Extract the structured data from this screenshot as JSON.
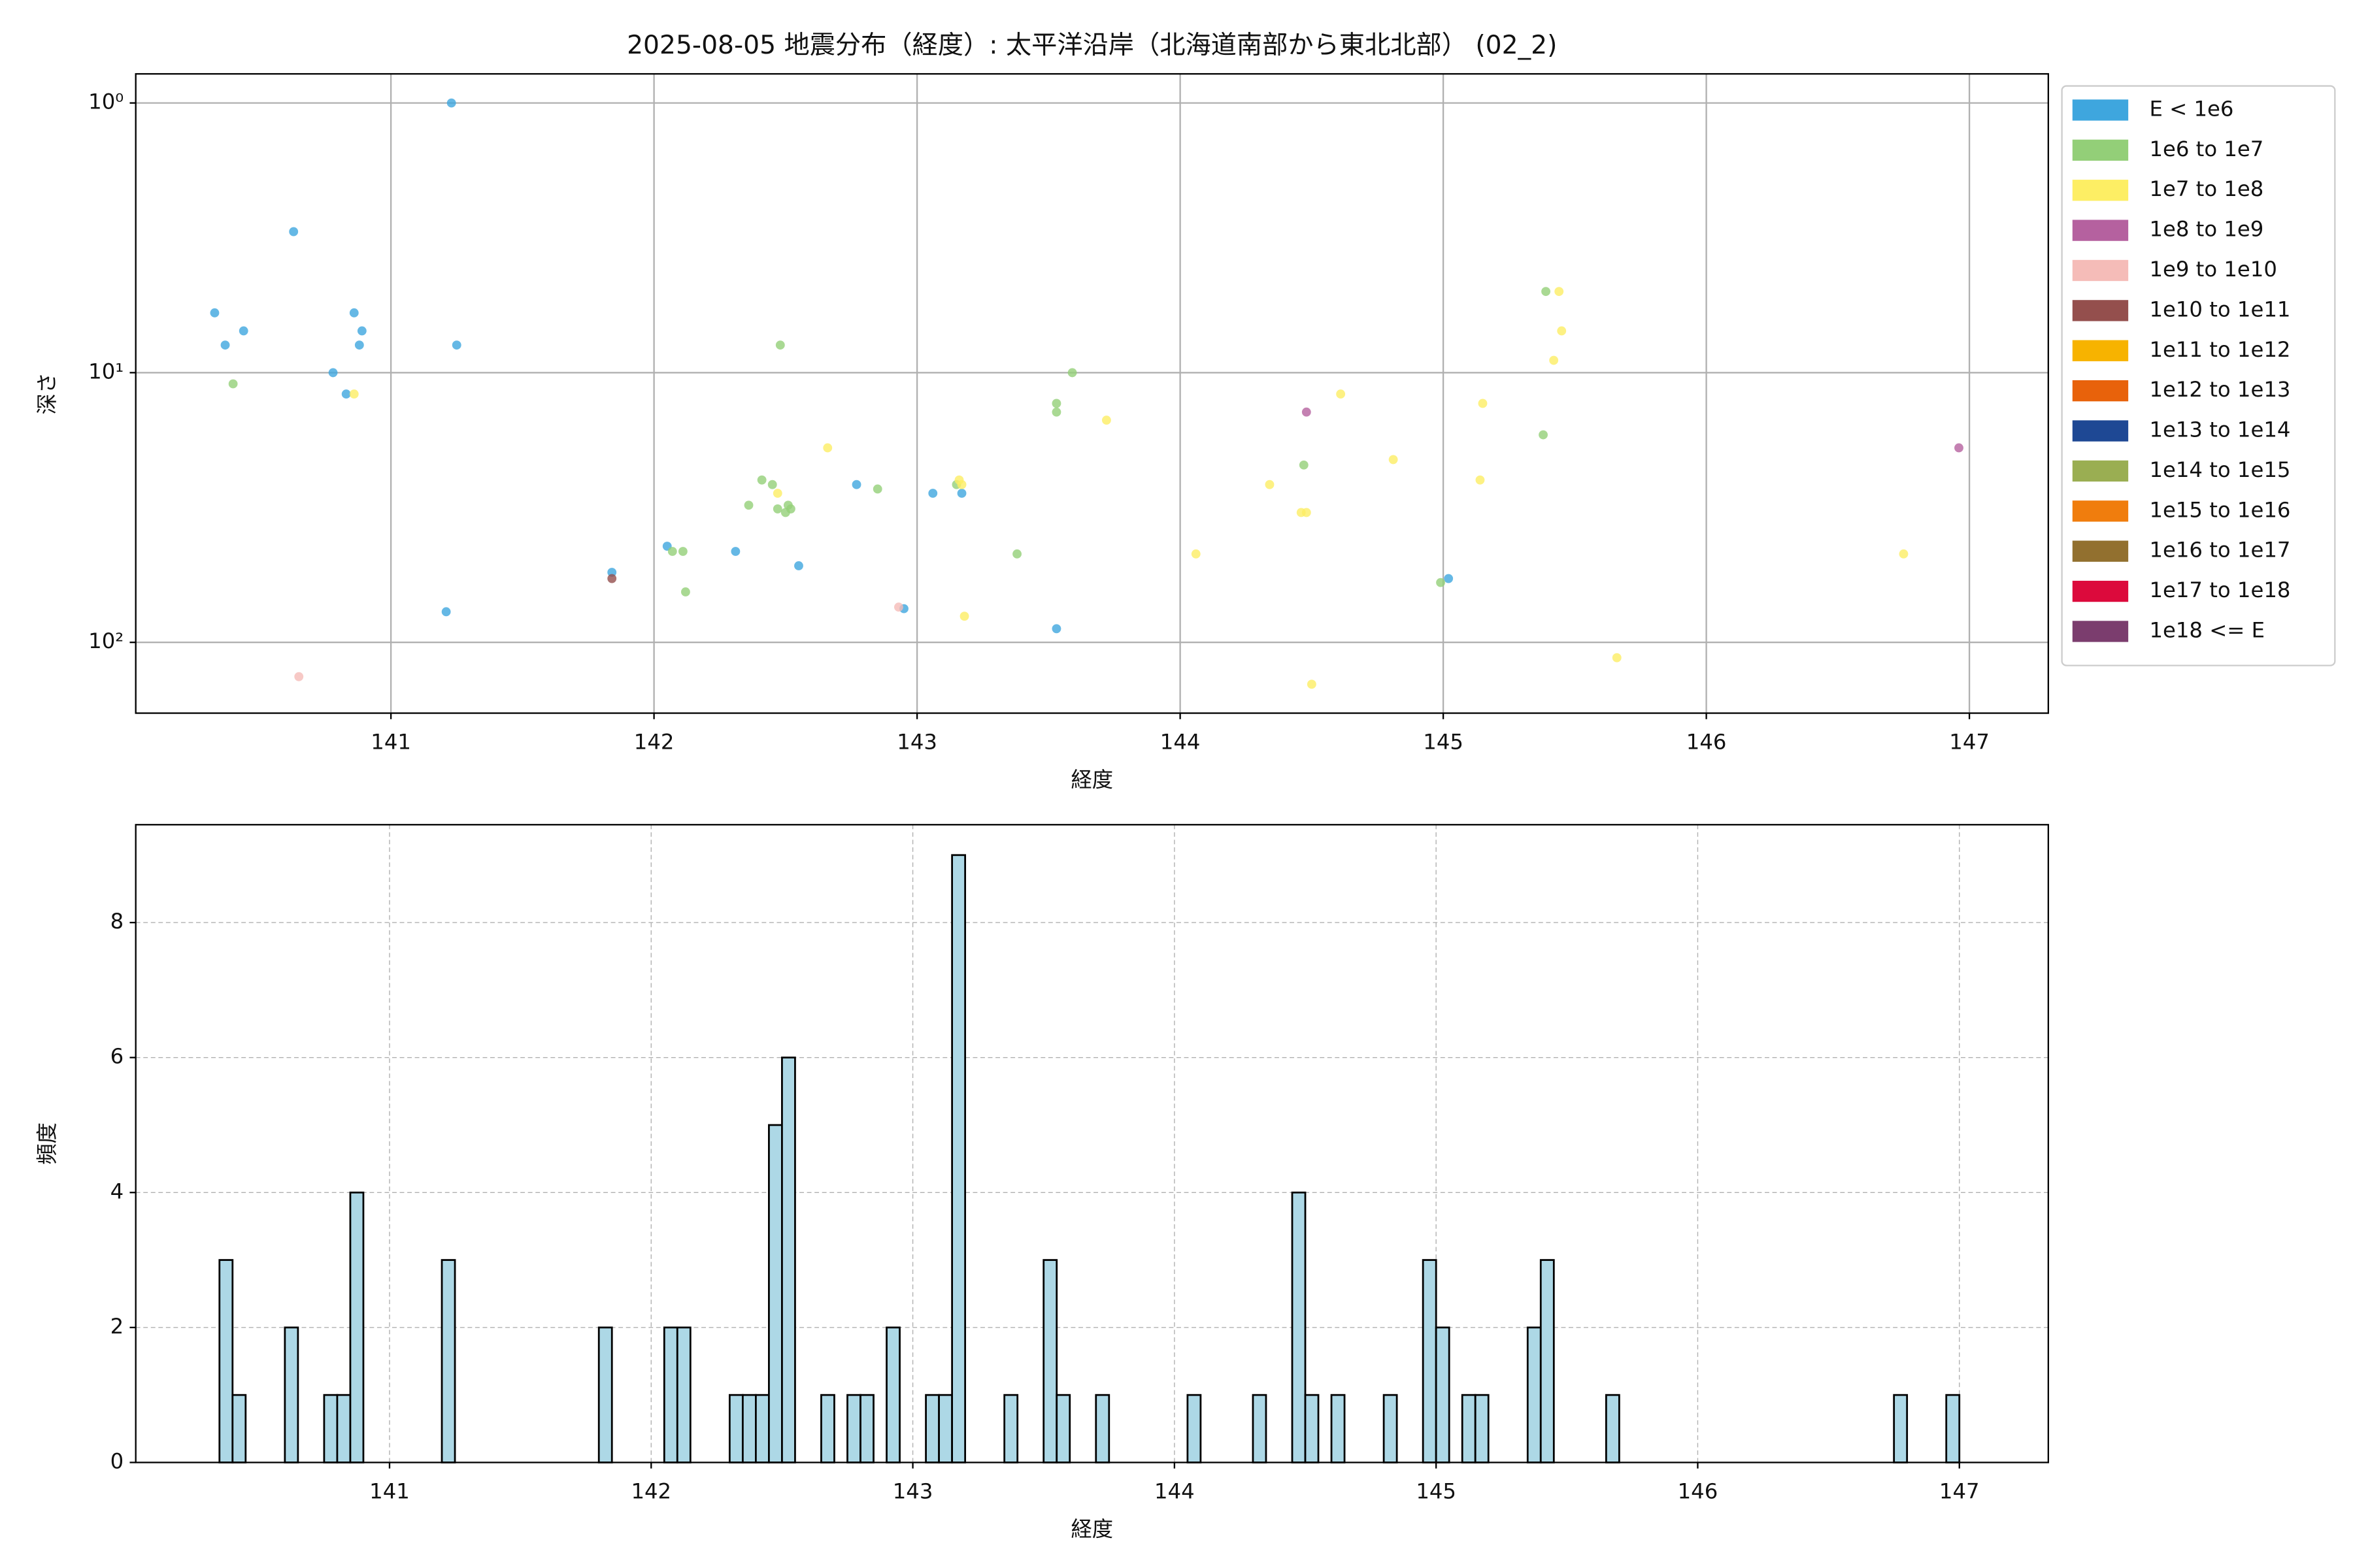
{
  "chart_data": [
    {
      "type": "scatter",
      "title": "2025-08-05 地震分布（経度）: 太平洋沿岸（北海道南部から東北北部） (02_2)",
      "xlabel": "経度",
      "ylabel": "深さ",
      "xlim": [
        140.03,
        147.3
      ],
      "xticks": [
        141,
        142,
        143,
        144,
        145,
        146,
        147
      ],
      "ylim": [
        0.78,
        183
      ],
      "yscale": "log",
      "yinvert": true,
      "yticks": [
        {
          "value": 1,
          "label": "10⁰"
        },
        {
          "value": 10,
          "label": "10¹"
        },
        {
          "value": 100,
          "label": "10²"
        }
      ],
      "grid": true,
      "legend": "outside-upper-right",
      "series": [
        {
          "name": "E < 1e6",
          "color": "#3ea6de",
          "x": [
            140.33,
            140.37,
            140.44,
            140.63,
            140.78,
            140.83,
            140.86,
            140.89,
            140.88,
            141.23,
            141.25,
            141.21,
            141.84,
            142.05,
            142.31,
            142.55,
            142.77,
            142.95,
            143.06,
            143.17,
            143.53,
            145.02
          ],
          "values": [
            6.0,
            7.9,
            7.0,
            3.0,
            10,
            12,
            6.0,
            7.0,
            7.9,
            1.0,
            7.9,
            77,
            55,
            44,
            46,
            52,
            26,
            75,
            28,
            28,
            89,
            58
          ]
        },
        {
          "name": "1e6 to 1e7",
          "color": "#93cf78",
          "x": [
            140.4,
            142.07,
            142.11,
            142.12,
            142.36,
            142.41,
            142.45,
            142.47,
            142.48,
            142.5,
            142.51,
            142.52,
            142.85,
            143.15,
            143.38,
            143.53,
            143.53,
            143.59,
            144.47,
            144.99,
            145.38,
            145.39
          ],
          "values": [
            11,
            46,
            46,
            65,
            31,
            25,
            26,
            32,
            7.9,
            33,
            31,
            32,
            27,
            26,
            47,
            13,
            14,
            10,
            22,
            60,
            17,
            5.0
          ]
        },
        {
          "name": "1e7 to 1e8",
          "color": "#fdee64",
          "x": [
            140.86,
            142.47,
            142.66,
            143.16,
            143.17,
            143.18,
            143.72,
            144.06,
            144.34,
            144.46,
            144.48,
            144.5,
            144.61,
            144.81,
            145.14,
            145.15,
            145.44,
            145.42,
            145.45,
            145.66,
            146.75
          ],
          "values": [
            12,
            28,
            19,
            25,
            26,
            80,
            15,
            47,
            26,
            33,
            33,
            143,
            12,
            21,
            25,
            13,
            5.0,
            9.0,
            7.0,
            114,
            47
          ]
        },
        {
          "name": "1e8 to 1e9",
          "color": "#b5619f",
          "x": [
            144.48,
            146.96
          ],
          "values": [
            14,
            19
          ]
        },
        {
          "name": "1e9 to 1e10",
          "color": "#f5bcb8",
          "x": [
            140.65,
            142.93
          ],
          "values": [
            134,
            74
          ]
        },
        {
          "name": "1e10 to 1e11",
          "color": "#944f4d",
          "x": [
            141.84
          ],
          "values": [
            58
          ]
        },
        {
          "name": "1e11 to 1e12",
          "color": "#f7b300",
          "x": [],
          "values": []
        },
        {
          "name": "1e12 to 1e13",
          "color": "#e8620b",
          "x": [],
          "values": []
        },
        {
          "name": "1e13 to 1e14",
          "color": "#1e4894",
          "x": [],
          "values": []
        },
        {
          "name": "1e14 to 1e15",
          "color": "#9aae52",
          "x": [],
          "values": []
        },
        {
          "name": "1e15 to 1e16",
          "color": "#f07d0d",
          "x": [],
          "values": []
        },
        {
          "name": "1e16 to 1e17",
          "color": "#92702f",
          "x": [],
          "values": []
        },
        {
          "name": "1e17 to 1e18",
          "color": "#dc0a3c",
          "x": [],
          "values": []
        },
        {
          "name": "1e18 <= E",
          "color": "#7b3d6e",
          "x": [],
          "values": []
        }
      ]
    },
    {
      "type": "histogram",
      "xlabel": "経度",
      "ylabel": "頻度",
      "xlim": [
        140.03,
        147.34
      ],
      "xticks": [
        141,
        142,
        143,
        144,
        145,
        146,
        147
      ],
      "ylim": [
        0,
        9.45
      ],
      "yticks": [
        0,
        2,
        4,
        6,
        8
      ],
      "grid": true,
      "color": "#add8e6",
      "edgecolor": "#000000",
      "bins": [
        140.35,
        140.4,
        140.45,
        140.5,
        140.55,
        140.6,
        140.65,
        140.7,
        140.75,
        140.8,
        140.85,
        140.9,
        140.95,
        141,
        141.05,
        141.1,
        141.15,
        141.2,
        141.25,
        141.3,
        141.35,
        141.4,
        141.45,
        141.5,
        141.55,
        141.6,
        141.65,
        141.7,
        141.75,
        141.8,
        141.85,
        141.9,
        141.95,
        142,
        142.05,
        142.1,
        142.15,
        142.2,
        142.25,
        142.3,
        142.35,
        142.4,
        142.45,
        142.5,
        142.55,
        142.6,
        142.65,
        142.7,
        142.75,
        142.8,
        142.85,
        142.9,
        142.95,
        143,
        143.05,
        143.1,
        143.15,
        143.2,
        143.25,
        143.3,
        143.35,
        143.4,
        143.45,
        143.5,
        143.55,
        143.6,
        143.65,
        143.7,
        143.75,
        143.8,
        143.85,
        143.9,
        143.95,
        144,
        144.05,
        144.1,
        144.15,
        144.2,
        144.25,
        144.3,
        144.35,
        144.4,
        144.45,
        144.5,
        144.55,
        144.6,
        144.65,
        144.7,
        144.75,
        144.8,
        144.85,
        144.9,
        144.95,
        145,
        145.05,
        145.1,
        145.15,
        145.2,
        145.25,
        145.3,
        145.35,
        145.4,
        145.45,
        145.5,
        145.55,
        145.6,
        145.65,
        145.7,
        145.75,
        145.8,
        145.85,
        145.9,
        145.95,
        146,
        146.05,
        146.1,
        146.15,
        146.2,
        146.25,
        146.3,
        146.35,
        146.4,
        146.45,
        146.5,
        146.55,
        146.6,
        146.65,
        146.7,
        146.75,
        146.8,
        146.85,
        146.9,
        146.95,
        147
      ],
      "values": [
        3,
        1,
        0,
        0,
        0,
        2,
        0,
        0,
        1,
        1,
        4,
        0,
        0,
        0,
        0,
        0,
        0,
        3,
        0,
        0,
        0,
        0,
        0,
        0,
        0,
        0,
        0,
        0,
        0,
        2,
        0,
        0,
        0,
        0,
        2,
        2,
        0,
        0,
        0,
        1,
        1,
        1,
        5,
        6,
        0,
        0,
        1,
        0,
        1,
        1,
        0,
        2,
        0,
        0,
        1,
        1,
        9,
        0,
        0,
        0,
        1,
        0,
        0,
        3,
        1,
        0,
        0,
        1,
        0,
        0,
        0,
        0,
        0,
        0,
        1,
        0,
        0,
        0,
        0,
        1,
        0,
        0,
        4,
        1,
        0,
        1,
        0,
        0,
        0,
        1,
        0,
        0,
        3,
        2,
        0,
        1,
        1,
        0,
        0,
        0,
        2,
        3,
        0,
        0,
        0,
        0,
        1,
        0,
        0,
        0,
        0,
        0,
        0,
        0,
        0,
        0,
        0,
        0,
        0,
        0,
        0,
        0,
        0,
        0,
        0,
        0,
        0,
        0,
        1,
        0,
        0,
        0,
        1
      ]
    }
  ]
}
